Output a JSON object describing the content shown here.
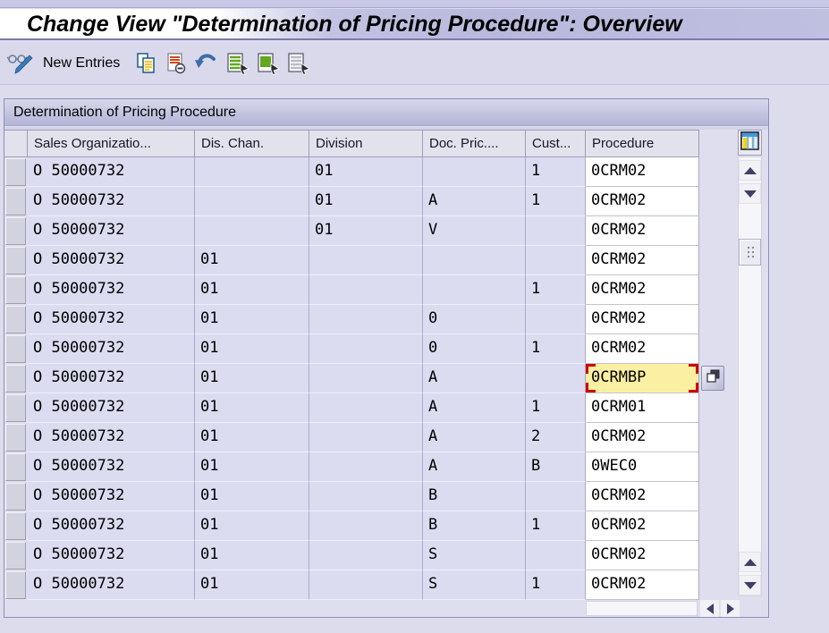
{
  "window": {
    "title": "Change View \"Determination of Pricing Procedure\": Overview"
  },
  "toolbar": {
    "new_entries_label": "New Entries",
    "icons": [
      "display-change-icon",
      "copy-as-icon",
      "delete-icon",
      "undo-icon",
      "select-all-icon",
      "select-block-icon",
      "deselect-all-icon"
    ]
  },
  "table": {
    "title": "Determination of Pricing Procedure",
    "columns": [
      "Sales Organizatio...",
      "Dis. Chan.",
      "Division",
      "Doc. Pric....",
      "Cust...",
      "Procedure"
    ],
    "rows": [
      [
        "O 50000732",
        "",
        "01",
        "",
        "1",
        "0CRM02"
      ],
      [
        "O 50000732",
        "",
        "01",
        "A",
        "1",
        "0CRM02"
      ],
      [
        "O 50000732",
        "",
        "01",
        "V",
        "",
        "0CRM02"
      ],
      [
        "O 50000732",
        "01",
        "",
        "",
        "",
        "0CRM02"
      ],
      [
        "O 50000732",
        "01",
        "",
        "",
        "1",
        "0CRM02"
      ],
      [
        "O 50000732",
        "01",
        "",
        "0",
        "",
        "0CRM02"
      ],
      [
        "O 50000732",
        "01",
        "",
        "0",
        "1",
        "0CRM02"
      ],
      [
        "O 50000732",
        "01",
        "",
        "A",
        "",
        "0CRMBP"
      ],
      [
        "O 50000732",
        "01",
        "",
        "A",
        "1",
        "0CRM01"
      ],
      [
        "O 50000732",
        "01",
        "",
        "A",
        "2",
        "0CRM02"
      ],
      [
        "O 50000732",
        "01",
        "",
        "A",
        "B",
        "0WEC0"
      ],
      [
        "O 50000732",
        "01",
        "",
        "B",
        "",
        "0CRM02"
      ],
      [
        "O 50000732",
        "01",
        "",
        "B",
        "1",
        "0CRM02"
      ],
      [
        "O 50000732",
        "01",
        "",
        "S",
        "",
        "0CRM02"
      ],
      [
        "O 50000732",
        "01",
        "",
        "S",
        "1",
        "0CRM02"
      ]
    ],
    "focused_cell": {
      "row_index": 7,
      "column": "Procedure",
      "value": "0CRMBP"
    }
  },
  "colors": {
    "accent_lavender": "#dcdcf1",
    "focused_yellow": "#fbf0a2",
    "focus_corner_red": "#cf0000",
    "container_border": "#8d8dbd",
    "white_cell": "#ffffff"
  }
}
